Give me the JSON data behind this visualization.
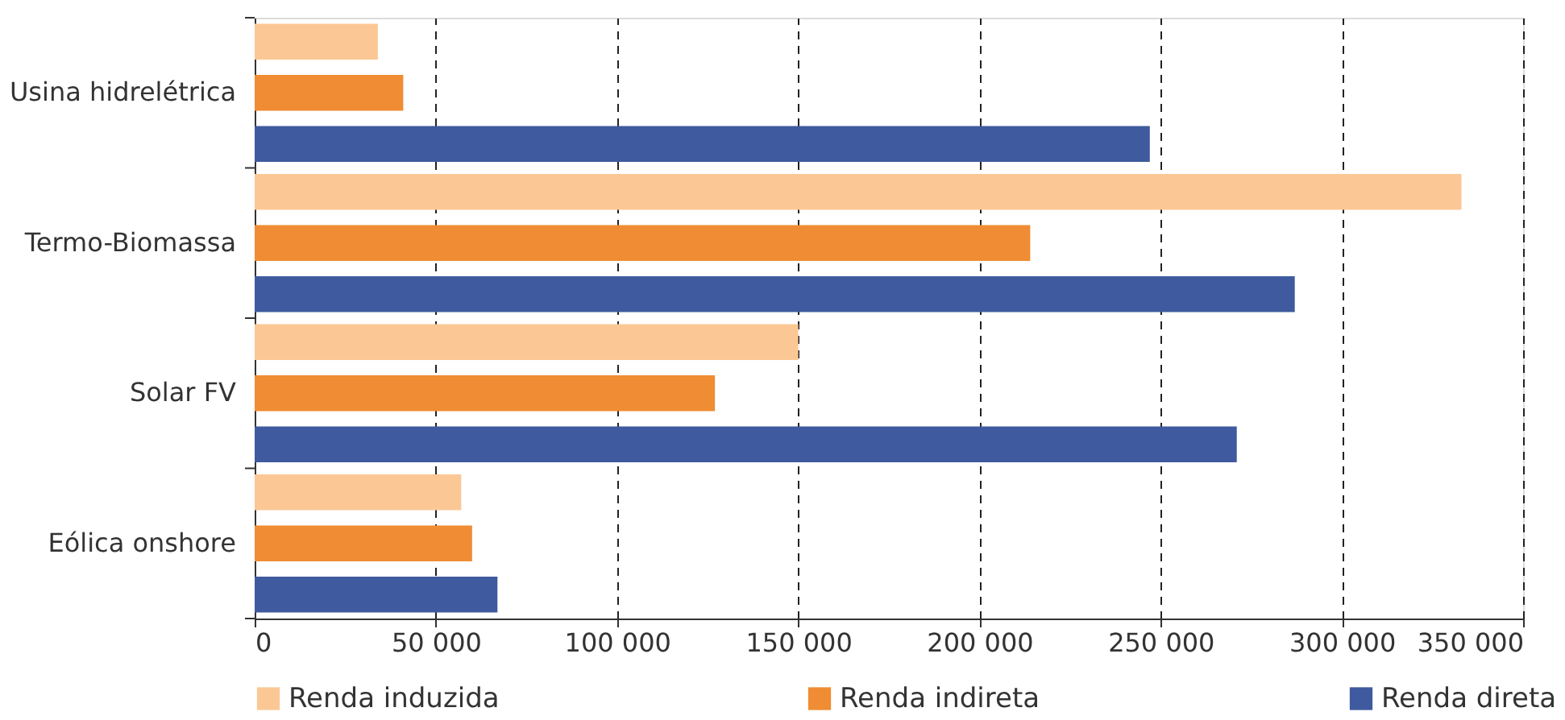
{
  "chart_data": {
    "type": "bar",
    "orientation": "horizontal",
    "categories": [
      "Usina hidrelétrica",
      "Termo-Biomassa",
      "Solar FV",
      "Eólica onshore"
    ],
    "series": [
      {
        "name": "Renda induzida",
        "color": "#fbc895",
        "values": [
          34000,
          333000,
          150000,
          57000
        ]
      },
      {
        "name": "Renda indireta",
        "color": "#f08c33",
        "values": [
          41000,
          214000,
          127000,
          60000
        ]
      },
      {
        "name": "Renda direta",
        "color": "#3f5a9e",
        "values": [
          247000,
          287000,
          271000,
          67000
        ]
      }
    ],
    "xlim": [
      0,
      350000
    ],
    "xticks": [
      0,
      {
        "value": 50000,
        "label": "50 000"
      },
      {
        "value": 100000,
        "label": "100 000"
      },
      {
        "value": 150000,
        "label": "150 000"
      },
      {
        "value": 200000,
        "label": "200 000"
      },
      {
        "value": 250000,
        "label": "250 000"
      },
      {
        "value": 300000,
        "label": "300 000"
      },
      {
        "value": 350000,
        "label": "350 000"
      }
    ],
    "grid": "x",
    "legend": "bottom"
  }
}
